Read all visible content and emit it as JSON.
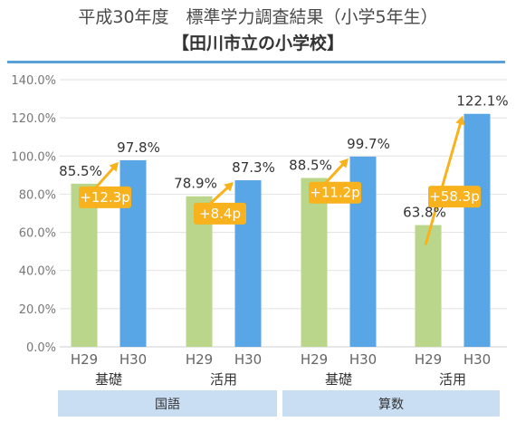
{
  "chart_data": {
    "type": "bar",
    "title": "平成30年度　標準学力調査結果（小学5年生）",
    "subtitle": "【田川市立の小学校】",
    "ylim": [
      0,
      140
    ],
    "yticks": [
      "0.0%",
      "20.0%",
      "40.0%",
      "60.0%",
      "80.0%",
      "100.0%",
      "120.0%",
      "140.0%"
    ],
    "grid": true,
    "series_names": [
      "H29",
      "H30"
    ],
    "groups": [
      {
        "subject": "国語",
        "label": "基礎",
        "values": [
          85.5,
          97.8
        ],
        "value_labels": [
          "85.5%",
          "97.8%"
        ],
        "diff": "+12.3p"
      },
      {
        "subject": "国語",
        "label": "活用",
        "values": [
          78.9,
          87.3
        ],
        "value_labels": [
          "78.9%",
          "87.3%"
        ],
        "diff": "+8.4p"
      },
      {
        "subject": "算数",
        "label": "基礎",
        "values": [
          88.5,
          99.7
        ],
        "value_labels": [
          "88.5%",
          "99.7%"
        ],
        "diff": "+11.2p"
      },
      {
        "subject": "算数",
        "label": "活用",
        "values": [
          63.8,
          122.1
        ],
        "value_labels": [
          "63.8%",
          "122.1%"
        ],
        "diff": "+58.3p"
      }
    ],
    "subjects": [
      "国語",
      "算数"
    ]
  },
  "colors": {
    "h29": "#b9d68a",
    "h30": "#58a6e6",
    "arrow": "#f7b21d",
    "diff_box": "#f7b21d",
    "rule": "#5aa0d8",
    "subject_band": "#c9def2",
    "grid": "#e2e2e2"
  }
}
